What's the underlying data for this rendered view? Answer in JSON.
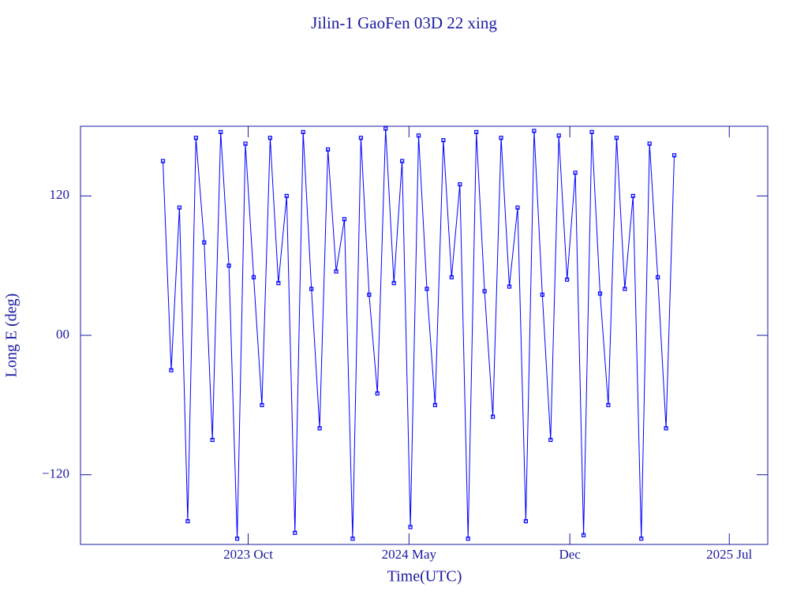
{
  "chart_data": {
    "type": "line",
    "title": "Jilin-1 GaoFen 03D 22 xing",
    "xlabel": "Time(UTC)",
    "ylabel": "Long E (deg)",
    "x": [
      2023.44,
      2023.47,
      2023.5,
      2023.53,
      2023.56,
      2023.59,
      2023.62,
      2023.65,
      2023.68,
      2023.71,
      2023.74,
      2023.77,
      2023.8,
      2023.83,
      2023.86,
      2023.89,
      2023.92,
      2023.95,
      2023.98,
      2024.01,
      2024.04,
      2024.07,
      2024.1,
      2024.13,
      2024.16,
      2024.19,
      2024.22,
      2024.25,
      2024.28,
      2024.31,
      2024.34,
      2024.37,
      2024.4,
      2024.43,
      2024.46,
      2024.49,
      2024.52,
      2024.55,
      2024.58,
      2024.61,
      2024.64,
      2024.67,
      2024.7,
      2024.73,
      2024.76,
      2024.79,
      2024.82,
      2024.85,
      2024.88,
      2024.91,
      2024.94,
      2024.97,
      2025.0,
      2025.03,
      2025.06,
      2025.09,
      2025.12,
      2025.15,
      2025.18,
      2025.21,
      2025.24,
      2025.27,
      2025.3
    ],
    "series": [
      {
        "name": "Long E",
        "color": "#0000ff",
        "values": [
          150,
          -30,
          110,
          -160,
          170,
          80,
          -90,
          175,
          60,
          -175,
          165,
          50,
          -60,
          170,
          45,
          120,
          -170,
          175,
          40,
          -80,
          160,
          55,
          100,
          -175,
          170,
          35,
          -50,
          178,
          45,
          150,
          -165,
          172,
          40,
          -60,
          168,
          50,
          130,
          -175,
          175,
          38,
          -70,
          170,
          42,
          110,
          -160,
          176,
          35,
          -90,
          172,
          48,
          140,
          -172,
          175,
          36,
          -60,
          170,
          40,
          120,
          -175,
          165,
          50,
          -80,
          155
        ]
      }
    ],
    "xlim": [
      2023.14,
      2025.64
    ],
    "xticks": [
      {
        "value": 2023.75,
        "label": "2023 Oct"
      },
      {
        "value": 2024.335,
        "label": "2024 May"
      },
      {
        "value": 2024.92,
        "label": "Dec"
      },
      {
        "value": 2025.5,
        "label": "2025 Jul"
      }
    ],
    "ylim": [
      -180,
      180
    ],
    "yticks": [
      {
        "value": -120,
        "label": "−120"
      },
      {
        "value": 0,
        "label": "00"
      },
      {
        "value": 120,
        "label": "120"
      }
    ],
    "grid": false
  }
}
